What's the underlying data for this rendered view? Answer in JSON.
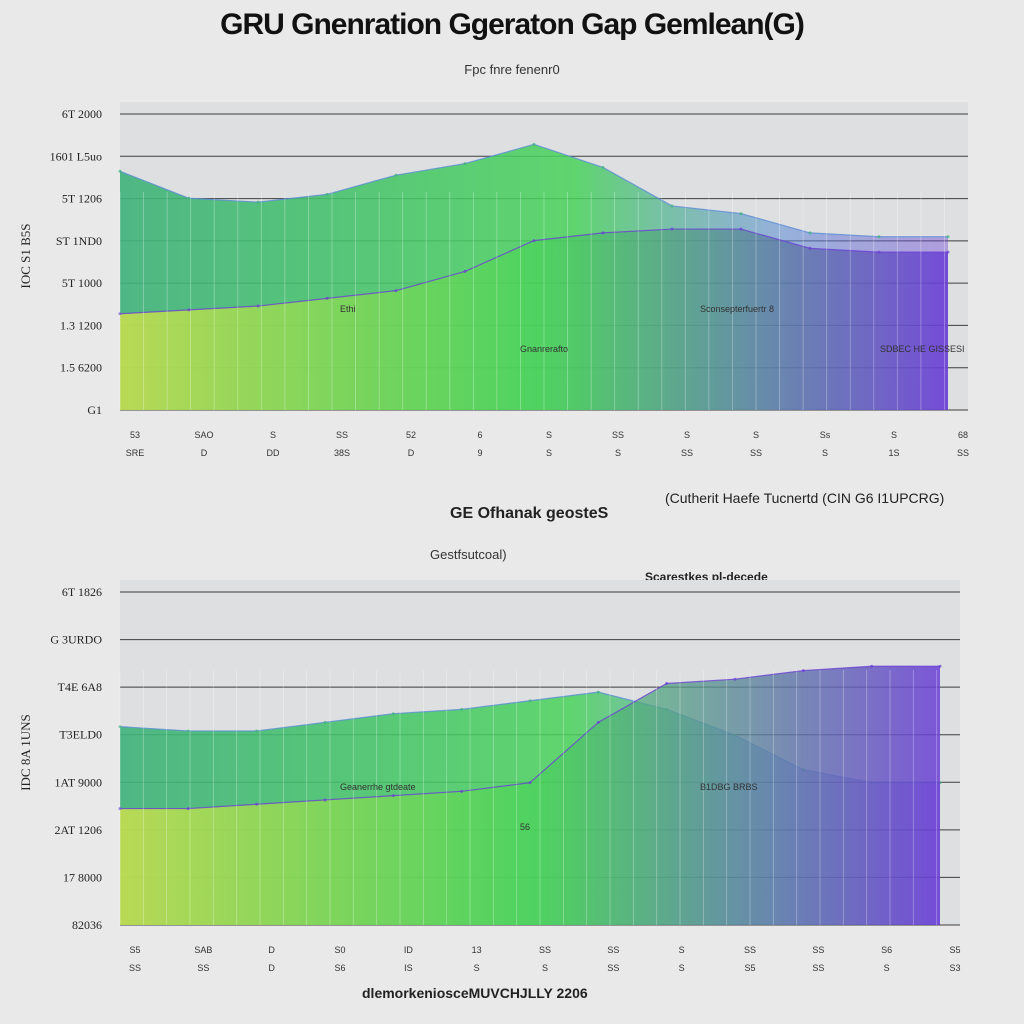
{
  "title": "GRU Gnenration Ggeraton Gap Gemlean(G)",
  "subtitle": "Fpc fnre fenenr0",
  "middle": {
    "left_label": "GE Ofhanak geosteS",
    "right_label": "(Cutherit Haefe Tucnertd (CIN G6 I1UPCRG)"
  },
  "chart2_subtitle": "Gestfsutcoal)",
  "chart2_note": "Scarestkes pl-decede",
  "footer": "dlemorkeniosceMUVCHJLLY 2206",
  "colors": {
    "green": "#3fb27a",
    "lightgreen": "#49d35a",
    "purple": "#6a3ed6",
    "blue": "#5b8cd6",
    "yellow": "#d4e24a",
    "red": "#e0441f",
    "grid": "#222222",
    "panel": "#dedfe0"
  },
  "chart_data": [
    {
      "type": "area",
      "y_tick_labels": [
        "6T 2000",
        "1601 L5uo",
        "5T 1206",
        "ST 1ND0",
        "5T 1000",
        "1.3 1200",
        "1.5 6200",
        "G1"
      ],
      "y_axis_title": "IOC S1 B5S",
      "x": [
        0,
        1,
        2,
        3,
        4,
        5,
        6,
        7,
        8,
        9,
        10,
        11,
        12
      ],
      "series": [
        {
          "values": [
            6.2,
            5.5,
            5.4,
            5.6,
            6.1,
            6.4,
            6.9,
            6.3,
            5.3,
            5.1,
            4.6,
            4.5,
            4.5
          ]
        },
        {
          "values": [
            2.5,
            2.6,
            2.7,
            2.9,
            3.1,
            3.6,
            4.4,
            4.6,
            4.7,
            4.7,
            4.2,
            4.1,
            4.1
          ]
        }
      ],
      "annotations": [
        "Ethi",
        "Gnanrerafto",
        "Sconsepterfuertr 8",
        "SDBEC HE GISSESI"
      ],
      "tick_rows": [
        [
          "53",
          "SAO",
          "S",
          "SS",
          "52",
          "6",
          "S",
          "SS",
          "S",
          "S",
          "Ss",
          "S",
          "68"
        ],
        [
          "SRE",
          "D",
          "DD",
          "38S",
          "D",
          "9",
          "S",
          "S",
          "SS",
          "SS",
          "S",
          "1S",
          "SS"
        ]
      ]
    },
    {
      "type": "area",
      "y_tick_labels": [
        "6T 1826",
        "G 3URDO",
        "T4E 6A8",
        "T3ELD0",
        "1AT 9000",
        "2AT 1206",
        "17 8000",
        "82036"
      ],
      "y_axis_title": "IDC 8A 1UNS",
      "x": [
        0,
        1,
        2,
        3,
        4,
        5,
        6,
        7,
        8,
        9,
        10,
        11,
        12
      ],
      "series": [
        {
          "values": [
            4.6,
            4.5,
            4.5,
            4.7,
            4.9,
            5.0,
            5.2,
            5.4,
            5.0,
            4.4,
            3.6,
            3.3,
            3.3
          ]
        },
        {
          "values": [
            2.7,
            2.7,
            2.8,
            2.9,
            3.0,
            3.1,
            3.3,
            4.7,
            5.6,
            5.7,
            5.9,
            6.0,
            6.0
          ]
        }
      ],
      "annotations": [
        "Geanerrhe gtdeate",
        "56",
        "B1DBG BRBS"
      ],
      "tick_rows": [
        [
          "S5",
          "SAB",
          "D",
          "S0",
          "ID",
          "13",
          "SS",
          "SS",
          "S",
          "SS",
          "SS",
          "S6",
          "S5"
        ],
        [
          "SS",
          "SS",
          "D",
          "S6",
          "IS",
          "S",
          "S",
          "SS",
          "S",
          "S5",
          "SS",
          "S",
          "S3"
        ]
      ]
    }
  ]
}
